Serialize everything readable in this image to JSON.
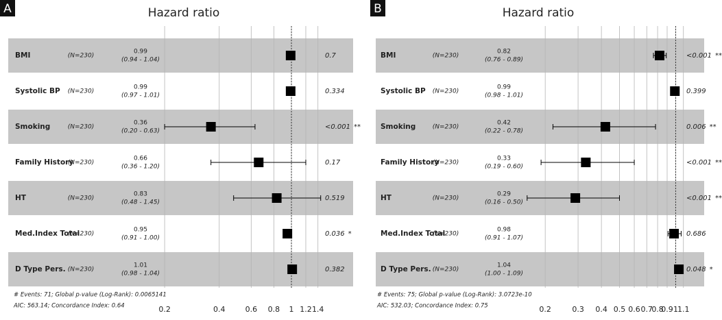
{
  "chart_data": [
    {
      "type": "forest",
      "panel": "A",
      "title": "Hazard ratio",
      "categories": [
        "BMI",
        "Systolic BP",
        "Smoking",
        "Family History",
        "HT",
        "Med.Index Total",
        "D Type Pers."
      ],
      "n_labels": [
        "(N=230)",
        "(N=230)",
        "(N=230)",
        "(N=230)",
        "(N=230)",
        "(N=230)",
        "(N=230)"
      ],
      "values": [
        0.99,
        0.99,
        0.36,
        0.66,
        0.83,
        0.95,
        1.01
      ],
      "lower": [
        0.94,
        0.97,
        0.2,
        0.36,
        0.48,
        0.91,
        0.98
      ],
      "upper": [
        1.04,
        1.01,
        0.63,
        1.2,
        1.45,
        1.0,
        1.04
      ],
      "ci_labels": [
        "(0.94 - 1.04)",
        "(0.97 - 1.01)",
        "(0.20 - 0.63)",
        "(0.36 - 1.20)",
        "(0.48 - 1.45)",
        "(0.91 - 1.00)",
        "(0.98 - 1.04)"
      ],
      "p_values": [
        "0.7",
        "0.334",
        "<0.001",
        "0.17",
        "0.519",
        "0.036",
        "0.382"
      ],
      "stars": [
        null,
        null,
        "**",
        null,
        null,
        "*",
        null
      ],
      "footer": [
        "# Events: 71; Global p-value (Log-Rank): 0.0065141",
        "AIC: 563.14; Concordance Index: 0.64"
      ],
      "log_x": true,
      "xlim": [
        0.18,
        1.7
      ],
      "xticks": [
        0.2,
        0.4,
        0.6,
        0.8,
        1,
        1.2,
        1.4
      ],
      "ref_line": 1,
      "grid": true,
      "color": "#000000"
    },
    {
      "type": "forest",
      "panel": "B",
      "title": "Hazard ratio",
      "categories": [
        "BMI",
        "Systolic BP",
        "Smoking",
        "Family History",
        "HT",
        "Med.Index Total",
        "D Type Pers."
      ],
      "n_labels": [
        "(N=230)",
        "(N=230)",
        "(N=230)",
        "(N=230)",
        "(N=230)",
        "(N=230)",
        "(N=230)"
      ],
      "values": [
        0.82,
        0.99,
        0.42,
        0.33,
        0.29,
        0.98,
        1.04
      ],
      "lower": [
        0.76,
        0.98,
        0.22,
        0.19,
        0.16,
        0.91,
        1.0
      ],
      "upper": [
        0.89,
        1.01,
        0.78,
        0.6,
        0.5,
        1.07,
        1.09
      ],
      "ci_labels": [
        "(0.76 - 0.89)",
        "(0.98 - 1.01)",
        "(0.22 - 0.78)",
        "(0.19 - 0.60)",
        "(0.16 - 0.50)",
        "(0.91 - 1.07)",
        "(1.00 - 1.09)"
      ],
      "p_values": [
        "<0.001",
        "0.399",
        "0.006",
        "<0.001",
        "<0.001",
        "0.686",
        "0.048"
      ],
      "stars": [
        "**",
        null,
        "**",
        "**",
        "**",
        null,
        "*"
      ],
      "footer": [
        "# Events: 75; Global p-value (Log-Rank): 3.0723e-10",
        "AIC: 532.03; Concordance Index: 0.75"
      ],
      "log_x": true,
      "xlim": [
        0.14,
        1.2
      ],
      "xticks": [
        0.2,
        0.3,
        0.4,
        0.5,
        0.6,
        0.7,
        0.8,
        0.9,
        1,
        1.1
      ],
      "ref_line": 1,
      "grid": true,
      "color": "#000000"
    }
  ]
}
